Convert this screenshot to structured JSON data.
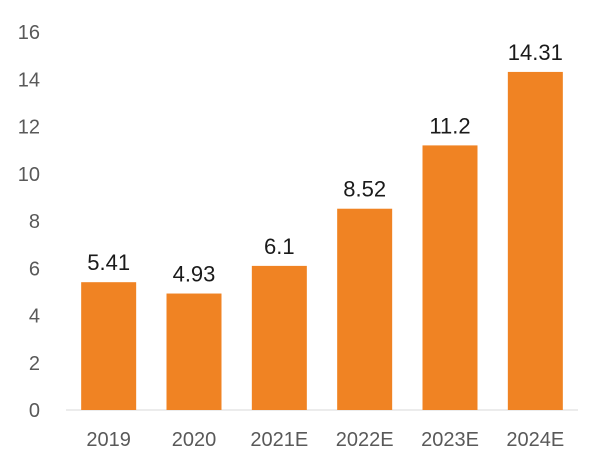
{
  "chart_data": {
    "type": "bar",
    "categories": [
      "2019",
      "2020",
      "2021E",
      "2022E",
      "2023E",
      "2024E"
    ],
    "values": [
      5.41,
      4.93,
      6.1,
      8.52,
      11.2,
      14.31
    ],
    "value_labels": [
      "5.41",
      "4.93",
      "6.1",
      "8.52",
      "11.2",
      "14.31"
    ],
    "title": "",
    "xlabel": "",
    "ylabel": "",
    "ylim": [
      0,
      16
    ],
    "yticks": [
      "0",
      "2",
      "4",
      "6",
      "8",
      "10",
      "12",
      "14",
      "16"
    ],
    "bar_color": "#F08323",
    "grid": false,
    "legend": "none"
  }
}
